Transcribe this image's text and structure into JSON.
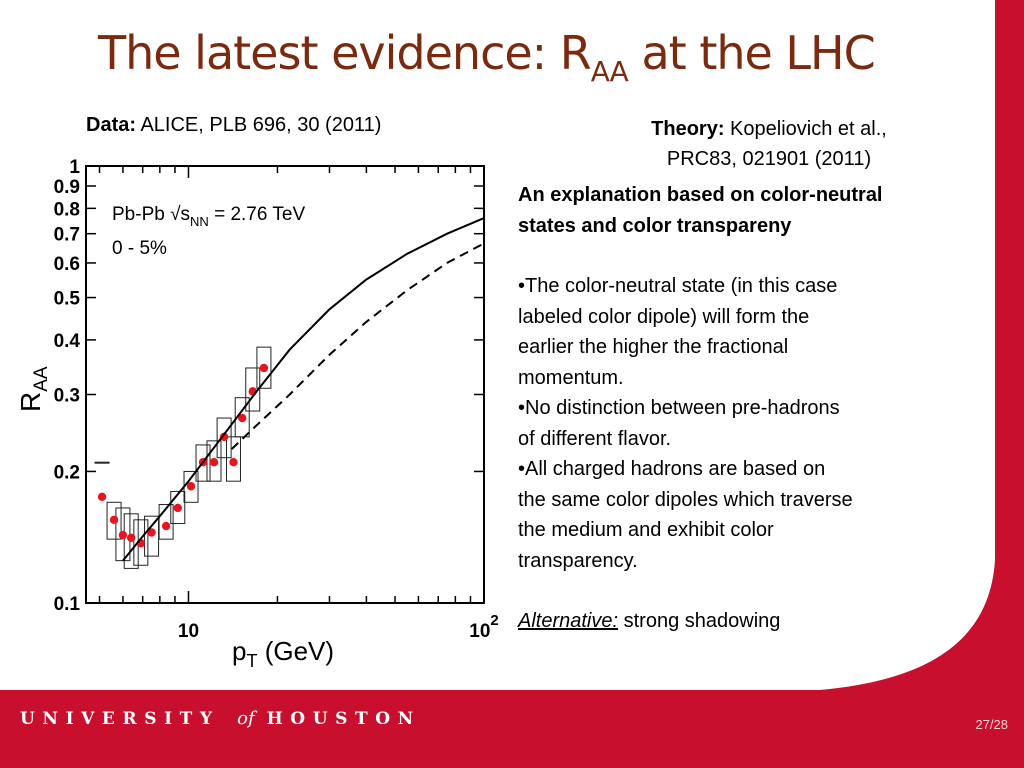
{
  "slide": {
    "title_main": "The latest evidence: R",
    "title_sub": "AA",
    "title_tail": " at the LHC",
    "data_label": "Data:",
    "data_text": " ALICE, PLB 696, 30 (2011)",
    "theory_label": "Theory:",
    "theory_text": " Kopeliovich et al.,",
    "theory_line2": "PRC83, 021901 (2011)",
    "heading_line1": "An explanation based on color-neutral",
    "heading_line2": "states and color transpareny",
    "bullets": [
      [
        "•The color-neutral state (in this case",
        "labeled color dipole) will form the",
        "earlier the higher the fractional",
        "momentum."
      ],
      [
        "•No distinction between pre-hadrons",
        "of different flavor."
      ],
      [
        "•All charged hadrons are based on",
        "the same color dipoles which traverse",
        "the medium and exhibit color",
        "transparency."
      ]
    ],
    "alt_label": "Alternative:",
    "alt_text": " strong shadowing",
    "footer_left": "UNIVERSITY",
    "footer_of": "of",
    "footer_right": "HOUSTON",
    "page_number": "27/28",
    "colors": {
      "title": "#7a2a0e",
      "accent_red": "#c8102e",
      "data_points": "#e8141e"
    }
  },
  "chart_data": {
    "type": "scatter",
    "xlabel": "p",
    "xlabel_sub": "T",
    "xlabel_unit": " (GeV)",
    "ylabel": "R",
    "ylabel_sub": "AA",
    "x_scale": "log",
    "y_scale": "log",
    "xlim": [
      4.5,
      100
    ],
    "ylim": [
      0.1,
      1
    ],
    "x_ticks": [
      {
        "value": 10,
        "label": "10"
      },
      {
        "value": 100,
        "label": "10",
        "exp": "2"
      }
    ],
    "y_ticks": [
      {
        "value": 0.1,
        "label": "0.1"
      },
      {
        "value": 0.2,
        "label": "0.2"
      },
      {
        "value": 0.3,
        "label": "0.3"
      },
      {
        "value": 0.4,
        "label": "0.4"
      },
      {
        "value": 0.5,
        "label": "0.5"
      },
      {
        "value": 0.6,
        "label": "0.6"
      },
      {
        "value": 0.7,
        "label": "0.7"
      },
      {
        "value": 0.8,
        "label": "0.8"
      },
      {
        "value": 0.9,
        "label": "0.9"
      },
      {
        "value": 1,
        "label": "1"
      }
    ],
    "annotations": [
      {
        "line1": "Pb-Pb",
        "sqrt_label": "√s",
        "sqrt_sub": "NN",
        "energy": " = 2.76 TeV"
      },
      {
        "line2": "0 - 5%"
      }
    ],
    "series": [
      {
        "style": "points",
        "color": "#e8141e",
        "x": [
          5.1,
          5.6,
          6.0,
          6.4,
          6.9,
          7.5,
          8.4,
          9.2,
          10.2,
          11.2,
          12.2,
          13.2,
          14.2,
          15.2,
          16.5,
          18.0
        ],
        "y": [
          0.175,
          0.155,
          0.143,
          0.141,
          0.137,
          0.145,
          0.15,
          0.165,
          0.185,
          0.21,
          0.21,
          0.24,
          0.21,
          0.265,
          0.305,
          0.345
        ]
      },
      {
        "style": "solid",
        "x": [
          6.0,
          7.0,
          8.0,
          10.0,
          13.0,
          17.0,
          22.0,
          30.0,
          40.0,
          55.0,
          75.0,
          100.0
        ],
        "y": [
          0.125,
          0.142,
          0.158,
          0.19,
          0.24,
          0.305,
          0.38,
          0.47,
          0.55,
          0.63,
          0.7,
          0.76
        ]
      },
      {
        "style": "dashed",
        "x": [
          14.0,
          17.0,
          22.0,
          30.0,
          40.0,
          55.0,
          75.0,
          100.0
        ],
        "y": [
          0.225,
          0.255,
          0.3,
          0.37,
          0.44,
          0.52,
          0.6,
          0.665
        ]
      }
    ],
    "error_bars": {
      "x": [
        5.1,
        5.6,
        6.0,
        6.4,
        6.9,
        7.5,
        8.4,
        9.2,
        10.2,
        11.2,
        12.2,
        13.2,
        14.2,
        15.2,
        16.5,
        18.0
      ],
      "low": [
        0.21,
        0.14,
        0.125,
        0.12,
        0.122,
        0.128,
        0.14,
        0.152,
        0.17,
        0.19,
        0.19,
        0.215,
        0.19,
        0.24,
        0.275,
        0.31
      ],
      "high": [
        0.21,
        0.17,
        0.165,
        0.16,
        0.155,
        0.158,
        0.168,
        0.18,
        0.2,
        0.23,
        0.235,
        0.265,
        0.24,
        0.295,
        0.345,
        0.385
      ]
    }
  }
}
